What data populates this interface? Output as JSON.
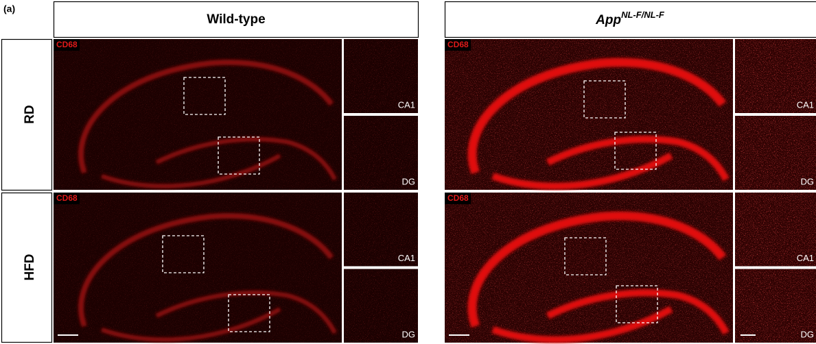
{
  "figure_label": "(a)",
  "columns": [
    {
      "title": "Wild-type"
    },
    {
      "title": "App",
      "superscript": "NL-F/NL-F"
    }
  ],
  "rows": [
    {
      "label": "RD"
    },
    {
      "label": "HFD"
    }
  ],
  "panels": [
    {
      "stain": "CD68",
      "insets": [
        "CA1",
        "DG"
      ]
    },
    {
      "stain": "CD68",
      "insets": [
        "CA1",
        "DG"
      ]
    },
    {
      "stain": "CD68",
      "insets": [
        "CA1",
        "DG"
      ]
    },
    {
      "stain": "CD68",
      "insets": [
        "CA1",
        "DG"
      ]
    }
  ]
}
